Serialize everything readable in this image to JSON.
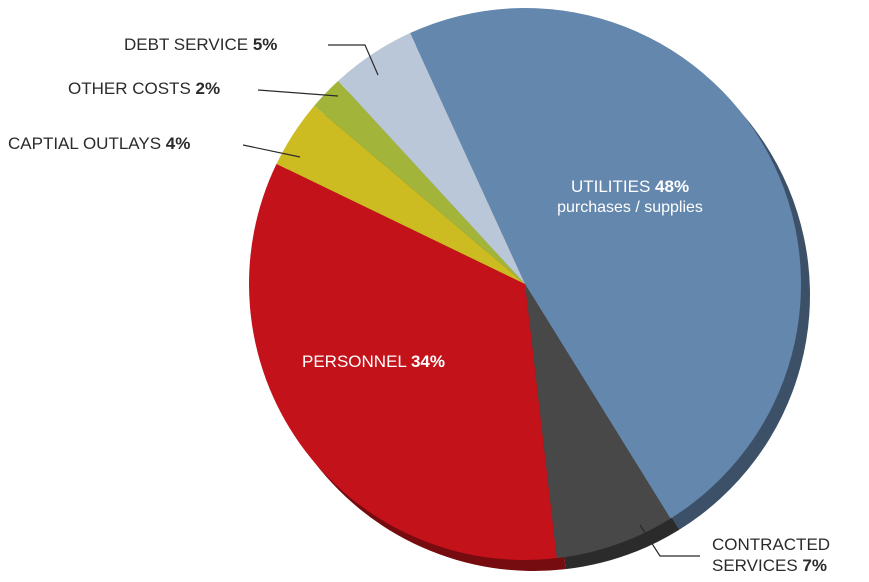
{
  "chart_data": {
    "type": "pie",
    "categories": [
      "UTILITIES",
      "CONTRACTED SERVICES",
      "PERSONNEL",
      "CAPTIAL OUTLAYS",
      "OTHER COSTS",
      "DEBT SERVICE"
    ],
    "values": [
      48,
      7,
      34,
      4,
      2,
      5
    ],
    "value_labels": [
      "48%",
      "7%",
      "34%",
      "4%",
      "2%",
      "5%"
    ],
    "colors": [
      "#6487ad",
      "#484848",
      "#c4121a",
      "#cdbb22",
      "#a2b53a",
      "#b9c7d9"
    ],
    "annotation": "purchases / supplies"
  }
}
